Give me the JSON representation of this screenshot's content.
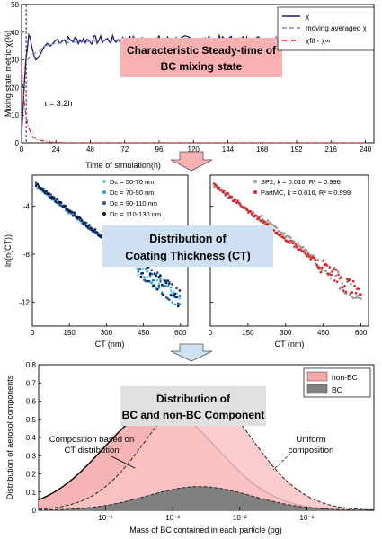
{
  "chart_data": [
    {
      "type": "line",
      "banner": [
        "Characteristic Steady-time of",
        "BC mixing state"
      ],
      "xlabel": "Time of simulation(h)",
      "ylabel": "Mixing state metric χ(%)",
      "xlim": [
        0,
        246
      ],
      "ylim": [
        0,
        50
      ],
      "xticks": [
        "0",
        "24",
        "48",
        "72",
        "96",
        "120",
        "144",
        "168",
        "192",
        "216",
        "240"
      ],
      "yticks": [
        "0",
        "10",
        "20",
        "30",
        "40",
        "50"
      ],
      "annotation": "τ = 3.2h",
      "tau_hours": 3.2,
      "legend_position": "top-right",
      "legend": [
        "χ",
        "moving averaged χ",
        "χfit - χ∞"
      ],
      "series": [
        {
          "name": "χ",
          "color": "#1a1a6e",
          "points": [
            [
              0,
              3
            ],
            [
              1,
              12
            ],
            [
              2,
              22
            ],
            [
              3,
              30
            ],
            [
              4,
              34
            ],
            [
              5,
              39
            ],
            [
              6,
              38
            ],
            [
              7,
              35
            ],
            [
              8,
              33
            ],
            [
              9,
              31
            ],
            [
              10,
              30
            ],
            [
              12,
              31
            ],
            [
              14,
              33
            ],
            [
              16,
              35
            ],
            [
              18,
              36
            ],
            [
              20,
              35
            ],
            [
              22,
              36
            ],
            [
              24,
              37
            ],
            [
              30,
              37
            ],
            [
              40,
              38
            ],
            [
              60,
              37
            ],
            [
              80,
              38
            ],
            [
              100,
              37
            ],
            [
              120,
              38
            ],
            [
              140,
              37
            ],
            [
              160,
              38
            ],
            [
              180,
              37
            ],
            [
              200,
              38
            ],
            [
              220,
              37
            ],
            [
              240,
              37
            ]
          ]
        },
        {
          "name": "moving averaged χ",
          "color": "#7a8ab0",
          "points": [
            [
              4,
              30
            ],
            [
              8,
              32
            ],
            [
              12,
              33
            ],
            [
              16,
              35
            ],
            [
              24,
              36
            ],
            [
              60,
              37
            ],
            [
              120,
              37.5
            ],
            [
              180,
              37.5
            ],
            [
              240,
              37
            ]
          ]
        },
        {
          "name": "χfit - χ∞",
          "color": "#e0202a",
          "points": [
            [
              0,
              28
            ],
            [
              1,
              20
            ],
            [
              2,
              14
            ],
            [
              3,
              10
            ],
            [
              4,
              7
            ],
            [
              6,
              4
            ],
            [
              8,
              2
            ],
            [
              12,
              1
            ],
            [
              20,
              0.3
            ],
            [
              30,
              0
            ],
            [
              240,
              0
            ]
          ]
        }
      ]
    },
    {
      "type": "scatter",
      "banner": [
        "Distribution of",
        "Coating Thickness (CT)"
      ],
      "xlabel": "CT (nm)",
      "ylabel": "ln(n(CT))",
      "xlim": [
        0,
        630
      ],
      "ylim": [
        -14,
        -1.4
      ],
      "xticks": [
        "0",
        "150",
        "300",
        "450",
        "600"
      ],
      "yticks": [
        "-4",
        "-8",
        "-12"
      ],
      "legend_position": "top-right",
      "series": [
        {
          "name": "Dc = 50-70 nm",
          "color": "#5ccfe6",
          "slope": -0.0164,
          "intercept": -2.0
        },
        {
          "name": "Dc = 70-90 nm",
          "color": "#2a9fd8",
          "slope": -0.0164,
          "intercept": -2.0
        },
        {
          "name": "Dc = 90-110 nm",
          "color": "#1e5aa8",
          "slope": -0.0164,
          "intercept": -2.0
        },
        {
          "name": "Dc = 110-130 nm",
          "color": "#14143c",
          "slope": -0.0164,
          "intercept": -2.0
        }
      ]
    },
    {
      "type": "scatter",
      "xlabel": "CT (nm)",
      "xlim": [
        0,
        630
      ],
      "ylim": [
        -14,
        -1.4
      ],
      "xticks": [
        "0",
        "150",
        "300",
        "450",
        "600"
      ],
      "legend_position": "top-right",
      "series": [
        {
          "name": "SP2, k = 0.016, R² = 0.996",
          "color": "#9a9a9a",
          "slope": -0.016,
          "intercept": -2.0
        },
        {
          "name": "PartMC, k = 0.016, R² = 0.999",
          "color": "#e02020",
          "slope": -0.0157,
          "intercept": -2.0
        }
      ]
    },
    {
      "type": "area",
      "banner": [
        "Distribution of",
        "BC and non-BC Component"
      ],
      "xlabel": "Mass of BC contained in each particle (pg)",
      "ylabel": "Distribution of aerosol components",
      "x_scale": "log",
      "xlim": [
        1e-05,
        1
      ],
      "ylim": [
        0,
        0.8
      ],
      "xticks": [
        "10⁻⁴",
        "10⁻³",
        "10⁻²",
        "10⁻¹"
      ],
      "yticks": [
        "0",
        "0.1",
        "0.2",
        "0.3",
        "0.4",
        "0.5",
        "0.6",
        "0.7",
        "0.8"
      ],
      "legend_position": "top-right",
      "legend": [
        "non-BC",
        "BC"
      ],
      "annotations": [
        "Composition based on CT distribution",
        "Uniform composition"
      ],
      "curves": [
        {
          "name": "non-BC",
          "color": "#f4a7a7",
          "peak_x": 0.00065,
          "peak_y": 0.56,
          "sigma_decades": 0.85
        },
        {
          "name": "Uniform composition",
          "color": "#f9c3c3",
          "peak_x": 0.0025,
          "peak_y": 0.65,
          "sigma_decades": 0.78
        },
        {
          "name": "BC",
          "color": "#808080",
          "peak_x": 0.0025,
          "peak_y": 0.13,
          "sigma_decades": 0.78
        }
      ]
    }
  ]
}
